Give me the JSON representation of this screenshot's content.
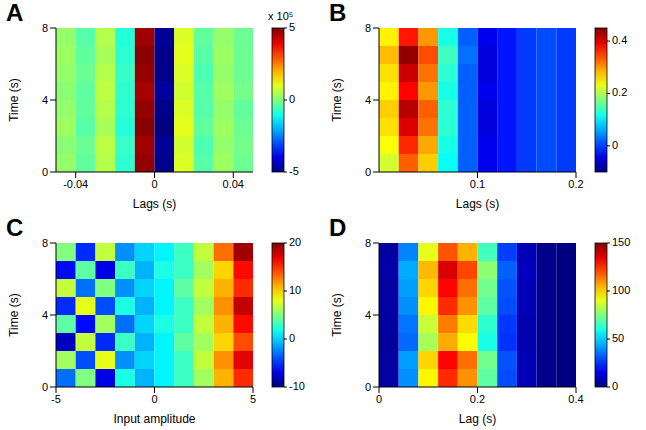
{
  "chart_data": [
    {
      "type": "heatmap",
      "title": "A",
      "x_label": "Lags (s)",
      "y_label": "Time (s)",
      "xlim": [
        -0.05,
        0.05
      ],
      "xticks": [
        -0.04,
        0,
        0.04
      ],
      "ylim": [
        0,
        8
      ],
      "yticks": [
        0,
        4,
        8
      ],
      "x": [
        -0.045,
        -0.035,
        -0.025,
        -0.015,
        -0.005,
        0.005,
        0.015,
        0.025,
        0.035,
        0.045
      ],
      "y": [
        0.5,
        1.5,
        2.5,
        3.5,
        4.5,
        5.5,
        6.5,
        7.5
      ],
      "cells": [
        [
          0.2,
          -0.3,
          0.5,
          -0.8,
          4.8,
          -4.9,
          0.9,
          -0.4,
          0.3,
          -0.2
        ],
        [
          0.1,
          -0.2,
          0.6,
          -0.7,
          4.7,
          -4.8,
          0.8,
          -0.5,
          0.2,
          -0.1
        ],
        [
          0.3,
          -0.4,
          0.4,
          -0.9,
          4.9,
          -5.0,
          1.0,
          -0.3,
          0.3,
          -0.2
        ],
        [
          0.2,
          -0.3,
          0.5,
          -0.8,
          4.8,
          -4.9,
          0.9,
          -0.4,
          0.2,
          -0.3
        ],
        [
          0.1,
          -0.3,
          0.6,
          -0.8,
          4.6,
          -4.7,
          0.8,
          -0.4,
          0.3,
          -0.1
        ],
        [
          0.2,
          -0.2,
          0.5,
          -0.7,
          4.8,
          -4.9,
          0.9,
          -0.5,
          0.2,
          -0.2
        ],
        [
          0.3,
          -0.3,
          0.4,
          -0.8,
          4.9,
          -4.9,
          1.0,
          -0.4,
          0.3,
          -0.2
        ],
        [
          0.2,
          -0.4,
          0.5,
          -0.9,
          4.7,
          -4.8,
          0.9,
          -0.3,
          0.2,
          -0.2
        ]
      ],
      "colorbar_lim": [
        -5,
        5
      ],
      "colorbar_ticks": [
        -5,
        0,
        5
      ],
      "colorbar_label": "x 10⁵"
    },
    {
      "type": "heatmap",
      "title": "B",
      "x_label": "Lags (s)",
      "y_label": "Time (s)",
      "xlim": [
        0,
        0.2
      ],
      "xticks": [
        0.1,
        0.2
      ],
      "ylim": [
        0,
        8
      ],
      "yticks": [
        0,
        4,
        8
      ],
      "x": [
        0.01,
        0.03,
        0.05,
        0.07,
        0.09,
        0.11,
        0.13,
        0.15,
        0.17,
        0.19
      ],
      "y": [
        0.5,
        1.5,
        2.5,
        3.5,
        4.5,
        5.5,
        6.5,
        7.5
      ],
      "cells": [
        [
          0.22,
          0.33,
          0.27,
          0.11,
          0.02,
          -0.04,
          -0.02,
          0,
          0.01,
          0
        ],
        [
          0.24,
          0.36,
          0.29,
          0.12,
          0.02,
          -0.04,
          -0.02,
          0,
          0.01,
          0
        ],
        [
          0.26,
          0.4,
          0.32,
          0.13,
          0.02,
          -0.05,
          -0.02,
          0,
          0.01,
          0
        ],
        [
          0.27,
          0.42,
          0.33,
          0.13,
          0.02,
          -0.05,
          -0.02,
          0,
          0.01,
          0
        ],
        [
          0.25,
          0.38,
          0.3,
          0.12,
          0.02,
          -0.04,
          -0.02,
          0,
          0.01,
          0
        ],
        [
          0.26,
          0.41,
          0.32,
          0.13,
          0.02,
          -0.05,
          -0.02,
          0,
          0.01,
          0
        ],
        [
          0.28,
          0.44,
          0.34,
          0.14,
          0.03,
          -0.05,
          -0.02,
          0,
          0.01,
          0
        ],
        [
          0.25,
          0.37,
          0.3,
          0.12,
          0.02,
          -0.04,
          -0.02,
          0,
          0.01,
          0
        ]
      ],
      "colorbar_lim": [
        -0.1,
        0.45
      ],
      "colorbar_ticks": [
        0,
        0.2,
        0.4
      ]
    },
    {
      "type": "heatmap",
      "title": "C",
      "x_label": "Input amplitude",
      "y_label": "Time (s)",
      "xlim": [
        -5,
        5
      ],
      "xticks": [
        -5,
        0,
        5
      ],
      "ylim": [
        0,
        8
      ],
      "yticks": [
        0,
        4,
        8
      ],
      "x": [
        -4.5,
        -3.5,
        -2.5,
        -1.5,
        -0.5,
        0.5,
        1.5,
        2.5,
        3.5,
        4.5
      ],
      "y": [
        0.5,
        1.5,
        2.5,
        3.5,
        4.5,
        5.5,
        6.5,
        7.5
      ],
      "cells": [
        [
          -3,
          5,
          -7,
          2,
          -1,
          1,
          3,
          6,
          11,
          15
        ],
        [
          6,
          -4,
          8,
          -2,
          0,
          1,
          3,
          7,
          12,
          17
        ],
        [
          -8,
          7,
          -5,
          3,
          -1,
          1,
          4,
          6,
          10,
          14
        ],
        [
          4,
          -6,
          6,
          -3,
          0,
          2,
          3,
          7,
          11,
          16
        ],
        [
          -5,
          8,
          -4,
          2,
          -1,
          1,
          3,
          6,
          12,
          18
        ],
        [
          7,
          -3,
          5,
          -2,
          0,
          1,
          4,
          7,
          11,
          15
        ],
        [
          -6,
          4,
          -7,
          3,
          -1,
          2,
          3,
          6,
          10,
          16
        ],
        [
          5,
          -5,
          7,
          -2,
          0,
          1,
          3,
          7,
          13,
          19
        ]
      ],
      "colorbar_lim": [
        -10,
        20
      ],
      "colorbar_ticks": [
        -10,
        0,
        10,
        20
      ]
    },
    {
      "type": "heatmap",
      "title": "D",
      "x_label": "Lag (s)",
      "y_label": "Time (s)",
      "xlim": [
        0,
        0.4
      ],
      "xticks": [
        0,
        0.2,
        0.4
      ],
      "ylim": [
        0,
        8
      ],
      "yticks": [
        0,
        4,
        8
      ],
      "x": [
        0.02,
        0.06,
        0.1,
        0.14,
        0.18,
        0.22,
        0.26,
        0.3,
        0.34,
        0.38
      ],
      "y": [
        0.5,
        1.5,
        2.5,
        3.5,
        4.5,
        5.5,
        6.5,
        7.5
      ],
      "cells": [
        [
          5,
          40,
          95,
          125,
          110,
          70,
          30,
          8,
          2,
          0
        ],
        [
          5,
          42,
          100,
          131,
          115,
          73,
          31,
          8,
          2,
          0
        ],
        [
          4,
          34,
          81,
          106,
          94,
          60,
          26,
          7,
          2,
          0
        ],
        [
          5,
          36,
          86,
          113,
          99,
          63,
          27,
          7,
          2,
          0
        ],
        [
          5,
          40,
          95,
          125,
          110,
          70,
          30,
          8,
          2,
          0
        ],
        [
          5,
          42,
          100,
          131,
          115,
          73,
          31,
          8,
          2,
          0
        ],
        [
          6,
          44,
          104,
          137,
          121,
          77,
          33,
          9,
          2,
          0
        ],
        [
          5,
          38,
          90,
          119,
          105,
          66,
          28,
          8,
          2,
          0
        ]
      ],
      "colorbar_lim": [
        0,
        150
      ],
      "colorbar_ticks": [
        0,
        50,
        100,
        150
      ]
    }
  ]
}
